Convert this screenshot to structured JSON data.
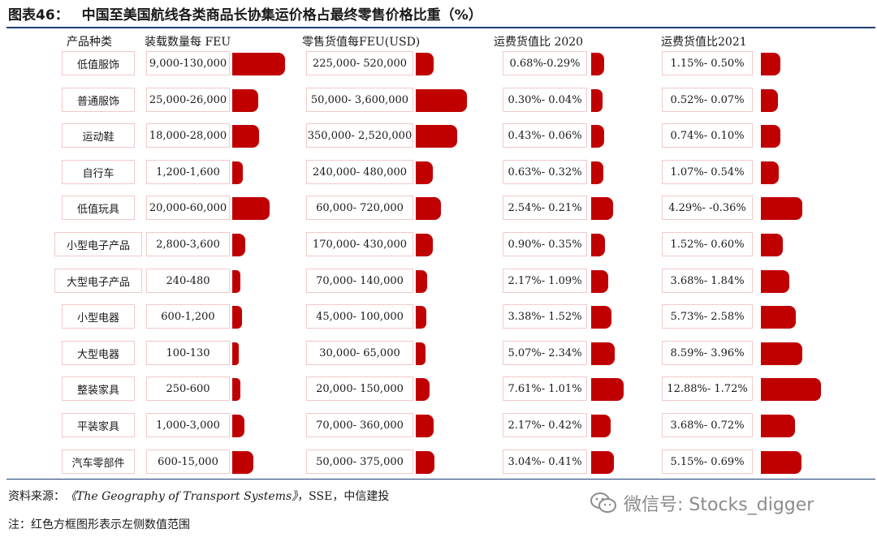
{
  "figure": {
    "number": "图表46：",
    "title": "中国至美国航线各类商品长协集运价格占最终零售价格比重（%）"
  },
  "headers": {
    "product": "产品种类",
    "units": "装载数量每 FEU",
    "retail": "零售货值每FEU(USD)",
    "ratio2020": "运费货值比 2020",
    "ratio2021": "运费货值比2021"
  },
  "rows": [
    {
      "product": "低值服饰",
      "units": "9,000-130,000",
      "retail": "225,000- 520,000",
      "r2020": "0.68%-0.29%",
      "r2021": "1.15%- 0.50%"
    },
    {
      "product": "普通服饰",
      "units": "25,000-26,000",
      "retail": "50,000- 3,600,000",
      "r2020": "0.30%- 0.04%",
      "r2021": "0.52%- 0.07%"
    },
    {
      "product": "运动鞋",
      "units": "18,000-28,000",
      "retail": "350,000- 2,520,000",
      "r2020": "0.43%- 0.06%",
      "r2021": "0.74%- 0.10%"
    },
    {
      "product": "自行车",
      "units": "1,200-1,600",
      "retail": "240,000- 480,000",
      "r2020": "0.63%- 0.32%",
      "r2021": "1.07%- 0.54%"
    },
    {
      "product": "低值玩具",
      "units": "20,000-60,000",
      "retail": "60,000- 720,000",
      "r2020": "2.54%- 0.21%",
      "r2021": "4.29%- -0.36%"
    },
    {
      "product": "小型电子产品",
      "units": "2,800-3,600",
      "retail": "170,000- 430,000",
      "r2020": "0.90%- 0.35%",
      "r2021": "1.52%- 0.60%"
    },
    {
      "product": "大型电子产品",
      "units": "240-480",
      "retail": "70,000- 140,000",
      "r2020": "2.17%- 1.09%",
      "r2021": "3.68%- 1.84%"
    },
    {
      "product": "小型电器",
      "units": "600-1,200",
      "retail": "45,000- 100,000",
      "r2020": "3.38%- 1.52%",
      "r2021": "5.73%- 2.58%"
    },
    {
      "product": "大型电器",
      "units": "100-130",
      "retail": "30,000- 65,000",
      "r2020": "5.07%- 2.34%",
      "r2021": "8.59%- 3.96%"
    },
    {
      "product": "整装家具",
      "units": "250-600",
      "retail": "20,000- 150,000",
      "r2020": "7.61%- 1.01%",
      "r2021": "12.88%- 1.72%"
    },
    {
      "product": "平装家具",
      "units": "1,000-3,000",
      "retail": "70,000- 360,000",
      "r2020": "2.17%- 0.42%",
      "r2021": "3.68%- 0.72%"
    },
    {
      "product": "汽车零部件",
      "units": "600-15,000",
      "retail": "50,000- 375,000",
      "r2020": "3.04%- 0.41%",
      "r2021": "5.15%- 0.69%"
    }
  ],
  "chart_data": {
    "type": "table",
    "columns": [
      "产品种类",
      "装载数量每 FEU",
      "零售货值每FEU(USD)",
      "运费货值比 2020",
      "运费货值比2021"
    ],
    "categories": [
      "低值服饰",
      "普通服饰",
      "运动鞋",
      "自行车",
      "低值玩具",
      "小型电子产品",
      "大型电子产品",
      "小型电器",
      "大型电器",
      "整装家具",
      "平装家具",
      "汽车零部件"
    ],
    "units_per_feu": [
      [
        9000,
        130000
      ],
      [
        25000,
        26000
      ],
      [
        18000,
        28000
      ],
      [
        1200,
        1600
      ],
      [
        20000,
        60000
      ],
      [
        2800,
        3600
      ],
      [
        240,
        480
      ],
      [
        600,
        1200
      ],
      [
        100,
        130
      ],
      [
        250,
        600
      ],
      [
        1000,
        3000
      ],
      [
        600,
        15000
      ]
    ],
    "retail_value_per_feu_usd": [
      [
        225000,
        520000
      ],
      [
        50000,
        3600000
      ],
      [
        350000,
        2520000
      ],
      [
        240000,
        480000
      ],
      [
        60000,
        720000
      ],
      [
        170000,
        430000
      ],
      [
        70000,
        140000
      ],
      [
        45000,
        100000
      ],
      [
        30000,
        65000
      ],
      [
        20000,
        150000
      ],
      [
        70000,
        360000
      ],
      [
        50000,
        375000
      ]
    ],
    "freight_value_ratio_2020_pct": [
      [
        0.68,
        0.29
      ],
      [
        0.3,
        0.04
      ],
      [
        0.43,
        0.06
      ],
      [
        0.63,
        0.32
      ],
      [
        2.54,
        0.21
      ],
      [
        0.9,
        0.35
      ],
      [
        2.17,
        1.09
      ],
      [
        3.38,
        1.52
      ],
      [
        5.07,
        2.34
      ],
      [
        7.61,
        1.01
      ],
      [
        2.17,
        0.42
      ],
      [
        3.04,
        0.41
      ]
    ],
    "freight_value_ratio_2021_pct": [
      [
        1.15,
        0.5
      ],
      [
        0.52,
        0.07
      ],
      [
        0.74,
        0.1
      ],
      [
        1.07,
        0.54
      ],
      [
        4.29,
        -0.36
      ],
      [
        1.52,
        0.6
      ],
      [
        3.68,
        1.84
      ],
      [
        5.73,
        2.58
      ],
      [
        8.59,
        3.96
      ],
      [
        12.88,
        1.72
      ],
      [
        3.68,
        0.72
      ],
      [
        5.15,
        0.69
      ]
    ],
    "bar_color": "#c00000",
    "cell_border_color": "#f3c9c9"
  },
  "footer": {
    "source_prefix": "资料来源：",
    "source_italic": "《The Geography of Transport Systems》",
    "source_suffix": "，SSE，中信建投",
    "note": "注：红色方框图形表示左侧数值范围",
    "watermark": "微信号: Stocks_digger"
  },
  "colors": {
    "rule": "#1f3f75",
    "bar": "#c00000"
  },
  "icons": {
    "watermark": "wechat-icon"
  }
}
